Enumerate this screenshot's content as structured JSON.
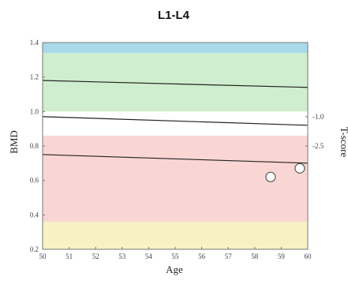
{
  "chart_data": {
    "type": "scatter",
    "title": "L1-L4",
    "xlabel": "Age",
    "ylabel": "BMD",
    "y2label": "T-score",
    "xlim": [
      50,
      60
    ],
    "ylim": [
      0.2,
      1.4
    ],
    "x_ticks": [
      "50",
      "51",
      "52",
      "53",
      "54",
      "55",
      "56",
      "57",
      "58",
      "59",
      "60"
    ],
    "y_ticks": [
      "0.2",
      "0.4",
      "0.6",
      "0.8",
      "1.0",
      "1.2",
      "1.4"
    ],
    "y2_ticks": [
      {
        "label": "-1.0",
        "bmd": 0.97
      },
      {
        "label": "-2.5",
        "bmd": 0.8
      }
    ],
    "bands": [
      {
        "from": 0.2,
        "to": 0.36,
        "color": "#f7f2c4"
      },
      {
        "from": 0.36,
        "to": 0.86,
        "color": "#f9d6d3"
      },
      {
        "from": 0.86,
        "to": 1.0,
        "color": "#ffffff"
      },
      {
        "from": 1.0,
        "to": 1.34,
        "color": "#cfeecf"
      },
      {
        "from": 1.34,
        "to": 1.4,
        "color": "#a9d9ea"
      }
    ],
    "reference_lines": [
      {
        "name": "upper",
        "y": [
          1.18,
          1.14
        ]
      },
      {
        "name": "middle",
        "y": [
          0.97,
          0.92
        ]
      },
      {
        "name": "lower",
        "y": [
          0.75,
          0.7
        ]
      }
    ],
    "points": [
      {
        "x": 58.6,
        "y": 0.62
      },
      {
        "x": 59.7,
        "y": 0.67
      }
    ]
  }
}
